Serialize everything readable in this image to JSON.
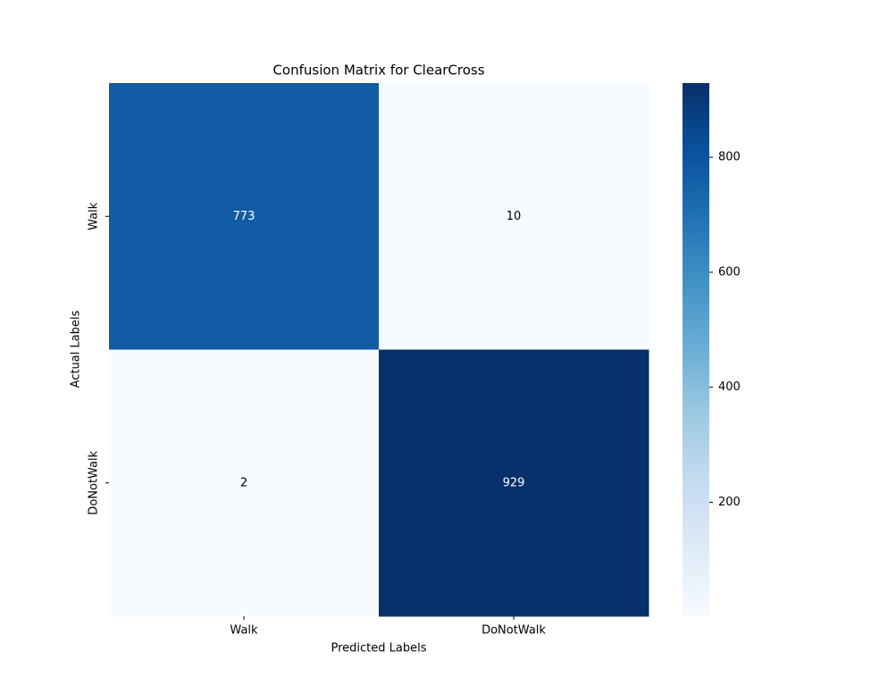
{
  "chart_data": {
    "type": "heatmap",
    "title": "Confusion Matrix for ClearCross",
    "xlabel": "Predicted Labels",
    "ylabel": "Actual Labels",
    "x_categories": [
      "Walk",
      "DoNotWalk"
    ],
    "y_categories": [
      "Walk",
      "DoNotWalk"
    ],
    "values": [
      [
        773,
        10
      ],
      [
        2,
        929
      ]
    ],
    "colormap": "Blues",
    "zlim": [
      2,
      929
    ],
    "zticks": [
      200,
      400,
      600,
      800
    ]
  }
}
